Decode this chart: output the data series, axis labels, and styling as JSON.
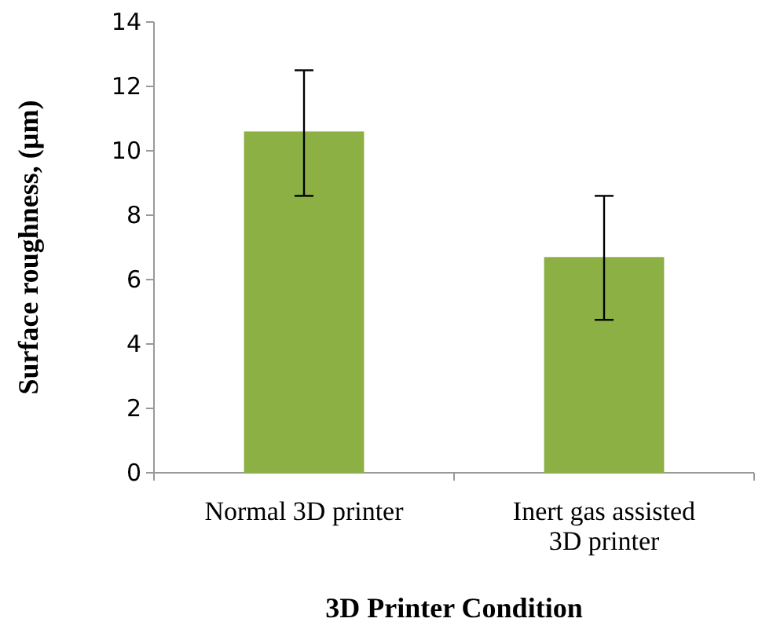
{
  "chart_data": {
    "type": "bar",
    "xlabel": "3D Printer Condition",
    "ylabel": "Surface roughness, (µm)",
    "categories": [
      "Normal 3D printer",
      "Inert gas assisted 3D printer"
    ],
    "values": [
      10.6,
      6.7
    ],
    "color": "#8cb044",
    "errors": [
      [
        8.6,
        12.5
      ],
      [
        4.75,
        8.6
      ]
    ],
    "ylim": [
      0,
      14
    ],
    "yticks": [
      0,
      2,
      4,
      6,
      8,
      10,
      12,
      14
    ],
    "grid": false
  }
}
